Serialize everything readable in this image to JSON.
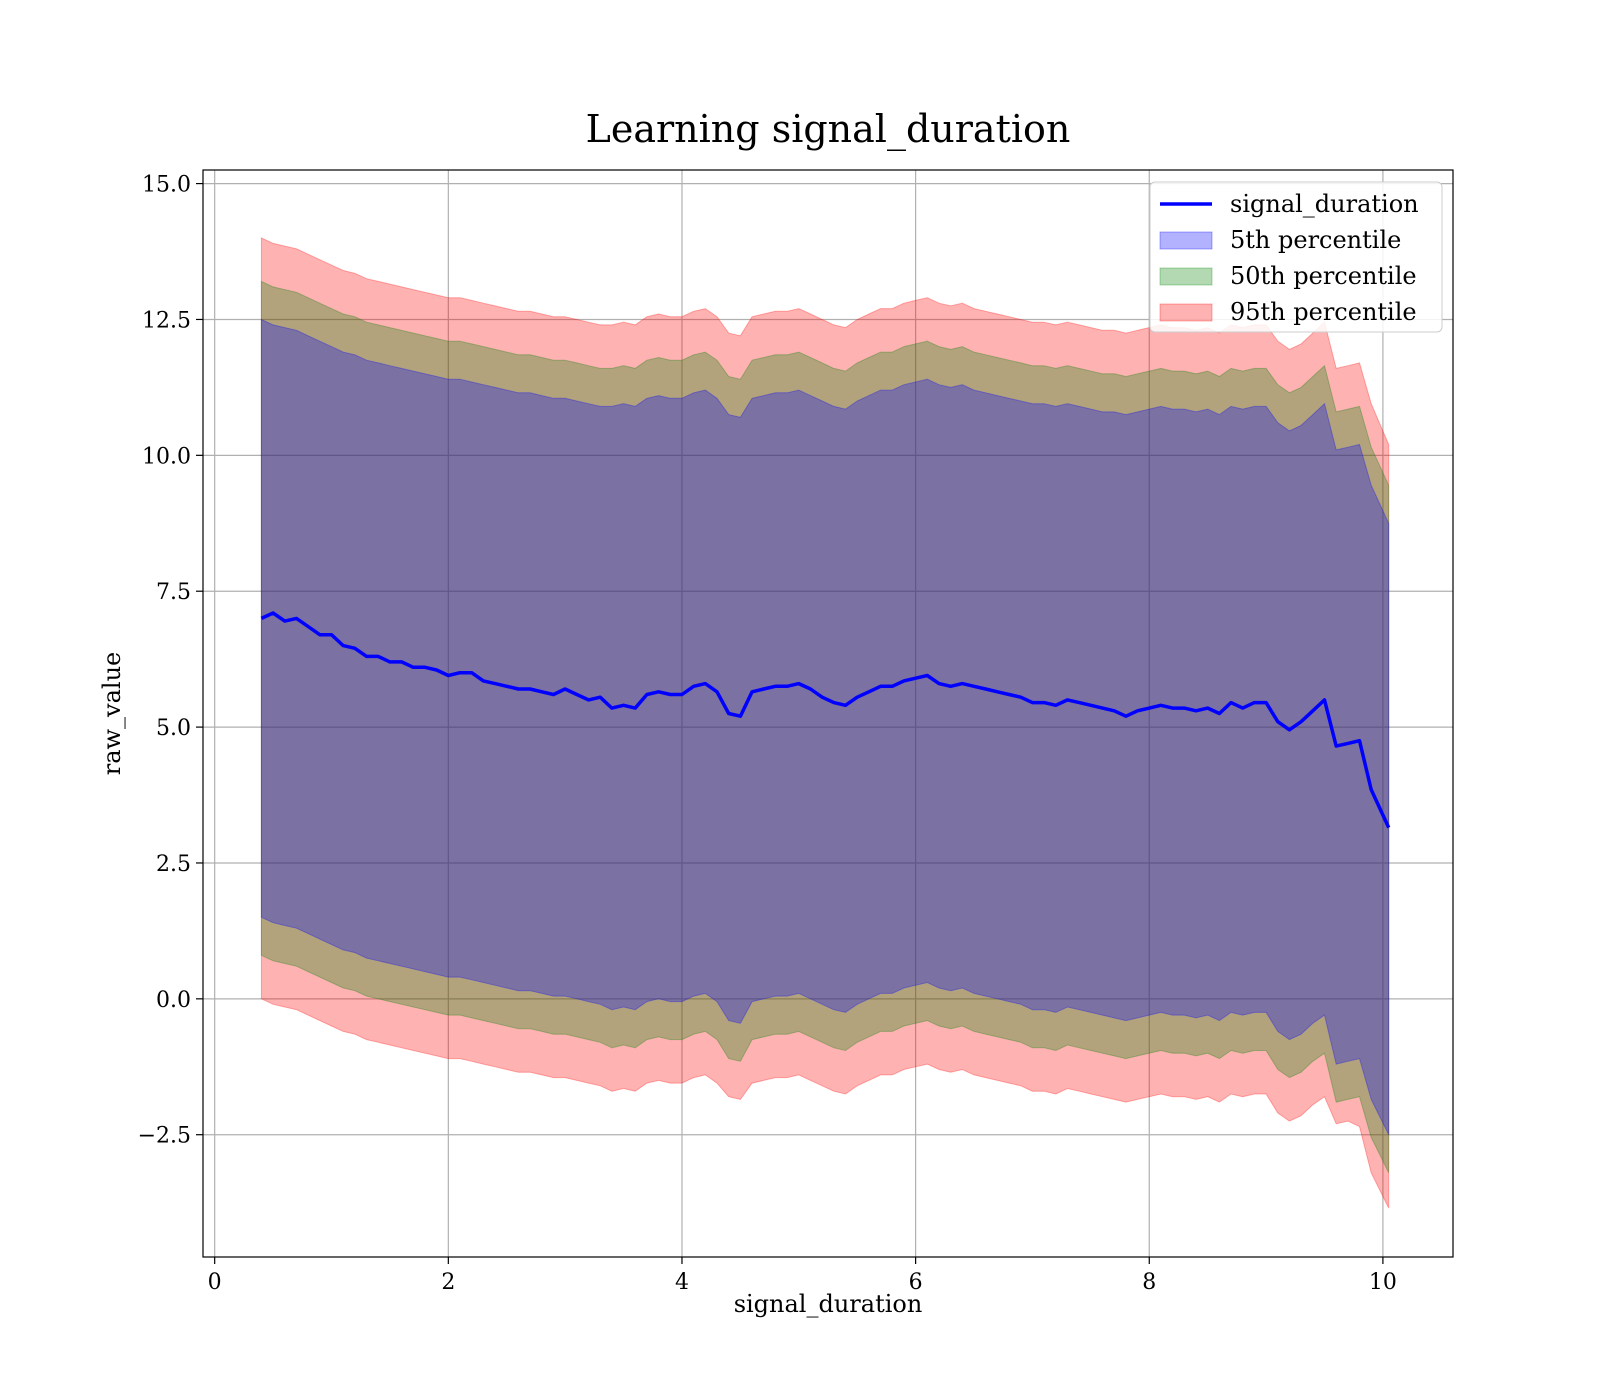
{
  "chart_data": {
    "type": "area",
    "title": "Learning signal_duration",
    "xlabel": "signal_duration",
    "ylabel": "raw_value",
    "xlim": [
      -0.1,
      10.6
    ],
    "ylim": [
      -4.75,
      15.25
    ],
    "grid": true,
    "legend_position": "top-right",
    "x_ticks": [
      0,
      2,
      4,
      6,
      8,
      10
    ],
    "y_ticks": [
      -2.5,
      0.0,
      2.5,
      5.0,
      7.5,
      10.0,
      12.5,
      15.0
    ],
    "x_tick_labels": [
      "0",
      "2",
      "4",
      "6",
      "8",
      "10"
    ],
    "y_tick_labels": [
      "−2.5",
      "0.0",
      "2.5",
      "5.0",
      "7.5",
      "10.0",
      "12.5",
      "15.0"
    ],
    "x": [
      0.4,
      0.5,
      0.6,
      0.7,
      0.8,
      0.9,
      1.0,
      1.1,
      1.2,
      1.3,
      1.4,
      1.5,
      1.6,
      1.7,
      1.8,
      1.9,
      2.0,
      2.1,
      2.2,
      2.3,
      2.4,
      2.5,
      2.6,
      2.7,
      2.8,
      2.9,
      3.0,
      3.1,
      3.2,
      3.3,
      3.4,
      3.5,
      3.6,
      3.7,
      3.8,
      3.9,
      4.0,
      4.1,
      4.2,
      4.3,
      4.4,
      4.5,
      4.6,
      4.7,
      4.8,
      4.9,
      5.0,
      5.1,
      5.2,
      5.3,
      5.4,
      5.5,
      5.6,
      5.7,
      5.8,
      5.9,
      6.0,
      6.1,
      6.2,
      6.3,
      6.4,
      6.5,
      6.6,
      6.7,
      6.8,
      6.9,
      7.0,
      7.1,
      7.2,
      7.3,
      7.4,
      7.5,
      7.6,
      7.7,
      7.8,
      7.9,
      8.0,
      8.1,
      8.2,
      8.3,
      8.4,
      8.5,
      8.6,
      8.7,
      8.8,
      8.9,
      9.0,
      9.1,
      9.2,
      9.3,
      9.4,
      9.5,
      9.6,
      9.7,
      9.8,
      9.9,
      10.05
    ],
    "series": [
      {
        "name": "signal_duration",
        "kind": "line",
        "color": "#0000ff",
        "values": [
          7.0,
          7.1,
          6.95,
          7.0,
          6.85,
          6.7,
          6.7,
          6.5,
          6.45,
          6.3,
          6.3,
          6.2,
          6.2,
          6.1,
          6.1,
          6.05,
          5.95,
          6.0,
          6.0,
          5.85,
          5.8,
          5.75,
          5.7,
          5.7,
          5.65,
          5.6,
          5.7,
          5.6,
          5.5,
          5.55,
          5.35,
          5.4,
          5.35,
          5.6,
          5.65,
          5.6,
          5.6,
          5.75,
          5.8,
          5.65,
          5.25,
          5.2,
          5.65,
          5.7,
          5.75,
          5.75,
          5.8,
          5.7,
          5.55,
          5.45,
          5.4,
          5.55,
          5.65,
          5.75,
          5.75,
          5.85,
          5.9,
          5.95,
          5.8,
          5.75,
          5.8,
          5.75,
          5.7,
          5.65,
          5.6,
          5.55,
          5.45,
          5.45,
          5.4,
          5.5,
          5.45,
          5.4,
          5.35,
          5.3,
          5.2,
          5.3,
          5.35,
          5.4,
          5.35,
          5.35,
          5.3,
          5.35,
          5.25,
          5.45,
          5.35,
          5.45,
          5.45,
          5.1,
          4.95,
          5.1,
          5.3,
          5.5,
          4.65,
          4.7,
          4.75,
          3.85,
          3.15
        ]
      },
      {
        "name": "5th percentile",
        "kind": "band",
        "color": "#0000ff",
        "lower": [
          1.5,
          1.4,
          1.35,
          1.3,
          1.2,
          1.1,
          1.0,
          0.9,
          0.85,
          0.75,
          0.7,
          0.65,
          0.6,
          0.55,
          0.5,
          0.45,
          0.4,
          0.4,
          0.35,
          0.3,
          0.25,
          0.2,
          0.15,
          0.15,
          0.1,
          0.05,
          0.05,
          0.0,
          -0.05,
          -0.1,
          -0.2,
          -0.15,
          -0.2,
          -0.05,
          0.0,
          -0.05,
          -0.05,
          0.05,
          0.1,
          -0.05,
          -0.4,
          -0.45,
          -0.05,
          0.0,
          0.05,
          0.05,
          0.1,
          0.0,
          -0.1,
          -0.2,
          -0.25,
          -0.1,
          0.0,
          0.1,
          0.1,
          0.2,
          0.25,
          0.3,
          0.2,
          0.15,
          0.2,
          0.1,
          0.05,
          0.0,
          -0.05,
          -0.1,
          -0.2,
          -0.2,
          -0.25,
          -0.15,
          -0.2,
          -0.25,
          -0.3,
          -0.35,
          -0.4,
          -0.35,
          -0.3,
          -0.25,
          -0.3,
          -0.3,
          -0.35,
          -0.3,
          -0.4,
          -0.25,
          -0.3,
          -0.25,
          -0.25,
          -0.6,
          -0.75,
          -0.65,
          -0.45,
          -0.3,
          -1.2,
          -1.15,
          -1.1,
          -1.85,
          -2.5
        ],
        "upper": [
          12.5,
          12.4,
          12.35,
          12.3,
          12.2,
          12.1,
          12.0,
          11.9,
          11.85,
          11.75,
          11.7,
          11.65,
          11.6,
          11.55,
          11.5,
          11.45,
          11.4,
          11.4,
          11.35,
          11.3,
          11.25,
          11.2,
          11.15,
          11.15,
          11.1,
          11.05,
          11.05,
          11.0,
          10.95,
          10.9,
          10.9,
          10.95,
          10.9,
          11.05,
          11.1,
          11.05,
          11.05,
          11.15,
          11.2,
          11.05,
          10.75,
          10.7,
          11.05,
          11.1,
          11.15,
          11.15,
          11.2,
          11.1,
          11.0,
          10.9,
          10.85,
          11.0,
          11.1,
          11.2,
          11.2,
          11.3,
          11.35,
          11.4,
          11.3,
          11.25,
          11.3,
          11.2,
          11.15,
          11.1,
          11.05,
          11.0,
          10.95,
          10.95,
          10.9,
          10.95,
          10.9,
          10.85,
          10.8,
          10.8,
          10.75,
          10.8,
          10.85,
          10.9,
          10.85,
          10.85,
          10.8,
          10.85,
          10.75,
          10.9,
          10.85,
          10.9,
          10.9,
          10.6,
          10.45,
          10.55,
          10.75,
          10.95,
          10.1,
          10.15,
          10.2,
          9.45,
          8.75
        ]
      },
      {
        "name": "50th percentile",
        "kind": "band",
        "color": "#008000",
        "lower": [
          0.8,
          0.7,
          0.65,
          0.6,
          0.5,
          0.4,
          0.3,
          0.2,
          0.15,
          0.05,
          0.0,
          -0.05,
          -0.1,
          -0.15,
          -0.2,
          -0.25,
          -0.3,
          -0.3,
          -0.35,
          -0.4,
          -0.45,
          -0.5,
          -0.55,
          -0.55,
          -0.6,
          -0.65,
          -0.65,
          -0.7,
          -0.75,
          -0.8,
          -0.9,
          -0.85,
          -0.9,
          -0.75,
          -0.7,
          -0.75,
          -0.75,
          -0.65,
          -0.6,
          -0.75,
          -1.1,
          -1.15,
          -0.75,
          -0.7,
          -0.65,
          -0.65,
          -0.6,
          -0.7,
          -0.8,
          -0.9,
          -0.95,
          -0.8,
          -0.7,
          -0.6,
          -0.6,
          -0.5,
          -0.45,
          -0.4,
          -0.5,
          -0.55,
          -0.5,
          -0.6,
          -0.65,
          -0.7,
          -0.75,
          -0.8,
          -0.9,
          -0.9,
          -0.95,
          -0.85,
          -0.9,
          -0.95,
          -1.0,
          -1.05,
          -1.1,
          -1.05,
          -1.0,
          -0.95,
          -1.0,
          -1.0,
          -1.05,
          -1.0,
          -1.1,
          -0.95,
          -1.0,
          -0.95,
          -0.95,
          -1.3,
          -1.45,
          -1.35,
          -1.15,
          -1.0,
          -1.9,
          -1.85,
          -1.8,
          -2.55,
          -3.2
        ],
        "upper": [
          13.2,
          13.1,
          13.05,
          13.0,
          12.9,
          12.8,
          12.7,
          12.6,
          12.55,
          12.45,
          12.4,
          12.35,
          12.3,
          12.25,
          12.2,
          12.15,
          12.1,
          12.1,
          12.05,
          12.0,
          11.95,
          11.9,
          11.85,
          11.85,
          11.8,
          11.75,
          11.75,
          11.7,
          11.65,
          11.6,
          11.6,
          11.65,
          11.6,
          11.75,
          11.8,
          11.75,
          11.75,
          11.85,
          11.9,
          11.75,
          11.45,
          11.4,
          11.75,
          11.8,
          11.85,
          11.85,
          11.9,
          11.8,
          11.7,
          11.6,
          11.55,
          11.7,
          11.8,
          11.9,
          11.9,
          12.0,
          12.05,
          12.1,
          12.0,
          11.95,
          12.0,
          11.9,
          11.85,
          11.8,
          11.75,
          11.7,
          11.65,
          11.65,
          11.6,
          11.65,
          11.6,
          11.55,
          11.5,
          11.5,
          11.45,
          11.5,
          11.55,
          11.6,
          11.55,
          11.55,
          11.5,
          11.55,
          11.45,
          11.6,
          11.55,
          11.6,
          11.6,
          11.3,
          11.15,
          11.25,
          11.45,
          11.65,
          10.8,
          10.85,
          10.9,
          10.15,
          9.45
        ]
      },
      {
        "name": "95th percentile",
        "kind": "band",
        "color": "#ff0000",
        "lower": [
          0.0,
          -0.1,
          -0.15,
          -0.2,
          -0.3,
          -0.4,
          -0.5,
          -0.6,
          -0.65,
          -0.75,
          -0.8,
          -0.85,
          -0.9,
          -0.95,
          -1.0,
          -1.05,
          -1.1,
          -1.1,
          -1.15,
          -1.2,
          -1.25,
          -1.3,
          -1.35,
          -1.35,
          -1.4,
          -1.45,
          -1.45,
          -1.5,
          -1.55,
          -1.6,
          -1.7,
          -1.65,
          -1.7,
          -1.55,
          -1.5,
          -1.55,
          -1.55,
          -1.45,
          -1.4,
          -1.55,
          -1.8,
          -1.85,
          -1.55,
          -1.5,
          -1.45,
          -1.45,
          -1.4,
          -1.5,
          -1.6,
          -1.7,
          -1.75,
          -1.6,
          -1.5,
          -1.4,
          -1.4,
          -1.3,
          -1.25,
          -1.2,
          -1.3,
          -1.35,
          -1.3,
          -1.4,
          -1.45,
          -1.5,
          -1.55,
          -1.6,
          -1.7,
          -1.7,
          -1.75,
          -1.65,
          -1.7,
          -1.75,
          -1.8,
          -1.85,
          -1.9,
          -1.85,
          -1.8,
          -1.75,
          -1.8,
          -1.8,
          -1.85,
          -1.8,
          -1.9,
          -1.75,
          -1.8,
          -1.75,
          -1.75,
          -2.1,
          -2.25,
          -2.15,
          -1.95,
          -1.8,
          -2.3,
          -2.25,
          -2.35,
          -3.2,
          -3.85
        ],
        "upper": [
          14.0,
          13.9,
          13.85,
          13.8,
          13.7,
          13.6,
          13.5,
          13.4,
          13.35,
          13.25,
          13.2,
          13.15,
          13.1,
          13.05,
          13.0,
          12.95,
          12.9,
          12.9,
          12.85,
          12.8,
          12.75,
          12.7,
          12.65,
          12.65,
          12.6,
          12.55,
          12.55,
          12.5,
          12.45,
          12.4,
          12.4,
          12.45,
          12.4,
          12.55,
          12.6,
          12.55,
          12.55,
          12.65,
          12.7,
          12.55,
          12.25,
          12.2,
          12.55,
          12.6,
          12.65,
          12.65,
          12.7,
          12.6,
          12.5,
          12.4,
          12.35,
          12.5,
          12.6,
          12.7,
          12.7,
          12.8,
          12.85,
          12.9,
          12.8,
          12.75,
          12.8,
          12.7,
          12.65,
          12.6,
          12.55,
          12.5,
          12.45,
          12.45,
          12.4,
          12.45,
          12.4,
          12.35,
          12.3,
          12.3,
          12.25,
          12.3,
          12.35,
          12.4,
          12.35,
          12.35,
          12.3,
          12.35,
          12.25,
          12.4,
          12.35,
          12.4,
          12.4,
          12.1,
          11.95,
          12.05,
          12.25,
          12.45,
          11.6,
          11.65,
          11.7,
          10.95,
          10.2
        ]
      }
    ]
  }
}
